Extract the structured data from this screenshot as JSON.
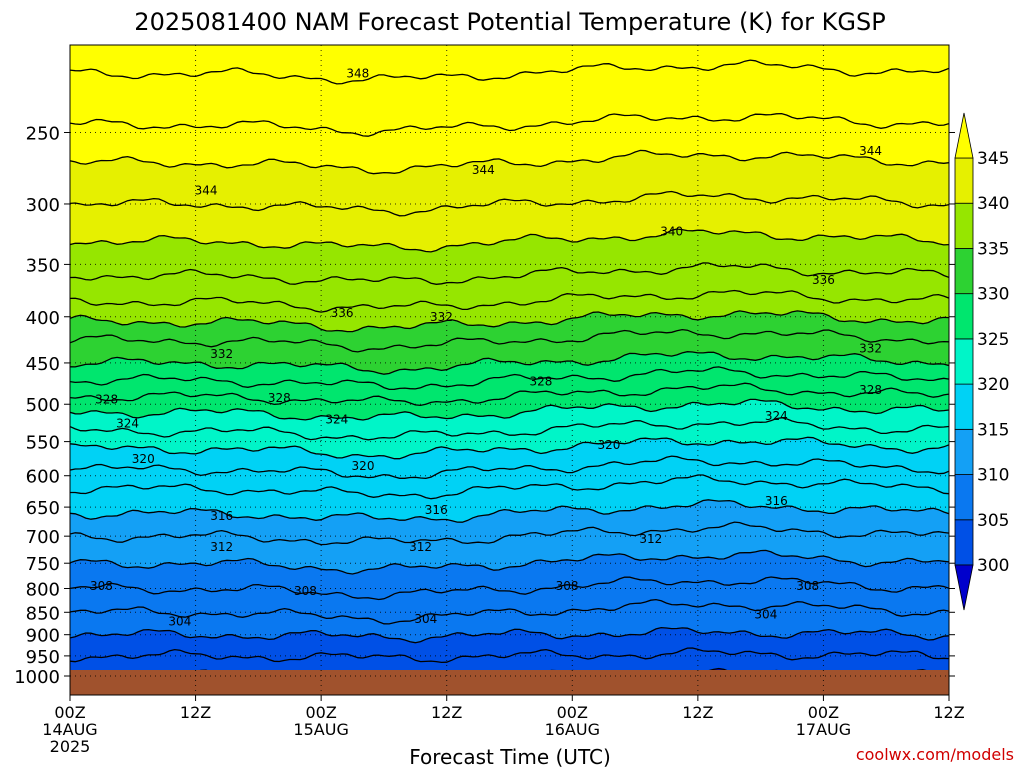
{
  "chart_data": {
    "type": "heatmap",
    "title": "2025081400 NAM Forecast Potential Temperature (K) for KGSP",
    "xlabel": "Forecast Time (UTC)",
    "ylabel": "",
    "x_ticks": [
      {
        "hour": 0,
        "lines": [
          "00Z",
          "14AUG",
          "2025"
        ]
      },
      {
        "hour": 12,
        "lines": [
          "12Z"
        ]
      },
      {
        "hour": 24,
        "lines": [
          "00Z",
          "15AUG"
        ]
      },
      {
        "hour": 36,
        "lines": [
          "12Z"
        ]
      },
      {
        "hour": 48,
        "lines": [
          "00Z",
          "16AUG"
        ]
      },
      {
        "hour": 60,
        "lines": [
          "12Z"
        ]
      },
      {
        "hour": 72,
        "lines": [
          "00Z",
          "17AUG"
        ]
      },
      {
        "hour": 84,
        "lines": [
          "12Z"
        ]
      }
    ],
    "xlim": [
      0,
      84
    ],
    "y_ticks": [
      250,
      300,
      350,
      400,
      450,
      500,
      550,
      600,
      650,
      700,
      750,
      800,
      850,
      900,
      950,
      1000
    ],
    "ylim": [
      200,
      1000
    ],
    "y_scale": "log-pressure",
    "grid": true,
    "colorbar": {
      "levels": [
        300,
        305,
        310,
        315,
        320,
        325,
        330,
        335,
        340,
        345
      ],
      "colors": [
        "#0000cc",
        "#0050e6",
        "#0a78f0",
        "#14a0f5",
        "#00d2f5",
        "#00f5c8",
        "#00e66e",
        "#2dd232",
        "#96e600",
        "#e6f000",
        "#ffff00"
      ],
      "extend": "both"
    },
    "isotherms": [
      {
        "p": 1000,
        "theta": 300
      },
      {
        "p": 950,
        "theta": 302
      },
      {
        "p": 900,
        "theta": 304
      },
      {
        "p": 850,
        "theta": 306
      },
      {
        "p": 800,
        "theta": 308
      },
      {
        "p": 750,
        "theta": 310
      },
      {
        "p": 700,
        "theta": 312
      },
      {
        "p": 660,
        "theta": 314
      },
      {
        "p": 620,
        "theta": 316
      },
      {
        "p": 590,
        "theta": 318
      },
      {
        "p": 560,
        "theta": 320
      },
      {
        "p": 535,
        "theta": 322
      },
      {
        "p": 510,
        "theta": 324
      },
      {
        "p": 490,
        "theta": 326
      },
      {
        "p": 470,
        "theta": 328
      },
      {
        "p": 450,
        "theta": 330
      },
      {
        "p": 425,
        "theta": 332
      },
      {
        "p": 405,
        "theta": 334
      },
      {
        "p": 385,
        "theta": 336
      },
      {
        "p": 360,
        "theta": 338
      },
      {
        "p": 330,
        "theta": 340
      },
      {
        "p": 300,
        "theta": 342
      },
      {
        "p": 270,
        "theta": 344
      },
      {
        "p": 245,
        "theta": 346
      },
      {
        "p": 215,
        "theta": 348
      }
    ],
    "contour_labels": [
      {
        "text": "348",
        "hour": 27.5,
        "p": 215
      },
      {
        "text": "344",
        "hour": 39.5,
        "p": 275
      },
      {
        "text": "344",
        "hour": 13,
        "p": 290
      },
      {
        "text": "344",
        "hour": 76.5,
        "p": 262
      },
      {
        "text": "340",
        "hour": 57.5,
        "p": 322
      },
      {
        "text": "336",
        "hour": 26,
        "p": 396
      },
      {
        "text": "336",
        "hour": 72,
        "p": 364
      },
      {
        "text": "332",
        "hour": 14.5,
        "p": 440
      },
      {
        "text": "332",
        "hour": 35.5,
        "p": 400
      },
      {
        "text": "332",
        "hour": 76.5,
        "p": 434
      },
      {
        "text": "328",
        "hour": 3.5,
        "p": 494
      },
      {
        "text": "328",
        "hour": 20,
        "p": 492
      },
      {
        "text": "328",
        "hour": 45,
        "p": 472
      },
      {
        "text": "328",
        "hour": 76.5,
        "p": 482
      },
      {
        "text": "324",
        "hour": 5.5,
        "p": 525
      },
      {
        "text": "324",
        "hour": 25.5,
        "p": 520
      },
      {
        "text": "324",
        "hour": 67.5,
        "p": 515
      },
      {
        "text": "320",
        "hour": 7,
        "p": 575
      },
      {
        "text": "320",
        "hour": 28,
        "p": 585
      },
      {
        "text": "320",
        "hour": 51.5,
        "p": 555
      },
      {
        "text": "316",
        "hour": 14.5,
        "p": 665
      },
      {
        "text": "316",
        "hour": 35,
        "p": 655
      },
      {
        "text": "316",
        "hour": 67.5,
        "p": 640
      },
      {
        "text": "312",
        "hour": 14.5,
        "p": 720
      },
      {
        "text": "312",
        "hour": 33.5,
        "p": 720
      },
      {
        "text": "312",
        "hour": 55.5,
        "p": 705
      },
      {
        "text": "308",
        "hour": 3,
        "p": 795
      },
      {
        "text": "308",
        "hour": 22.5,
        "p": 805
      },
      {
        "text": "308",
        "hour": 47.5,
        "p": 795
      },
      {
        "text": "308",
        "hour": 70.5,
        "p": 795
      },
      {
        "text": "304",
        "hour": 10.5,
        "p": 870
      },
      {
        "text": "304",
        "hour": 34,
        "p": 865
      },
      {
        "text": "304",
        "hour": 66.5,
        "p": 855
      }
    ]
  },
  "watermark": "coolwx.com/models"
}
